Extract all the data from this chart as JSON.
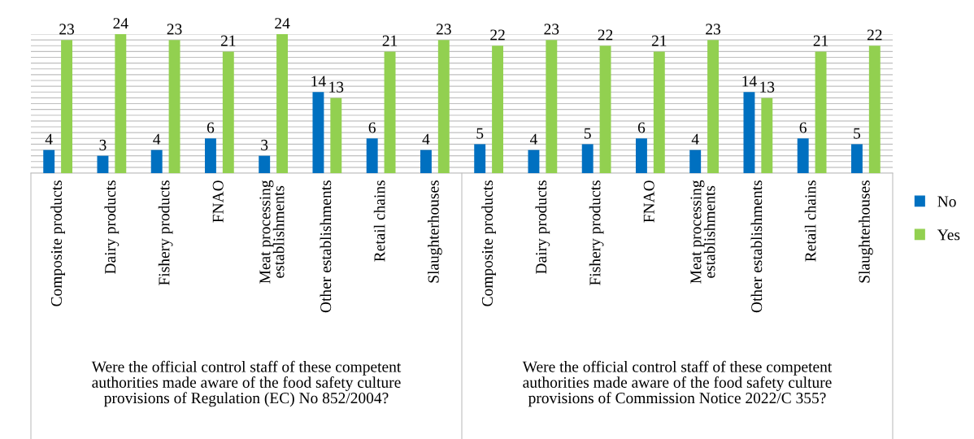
{
  "chart_data": {
    "type": "bar",
    "categories": [
      "Composite products",
      "Dairy products",
      "Fishery products",
      "FNAO",
      "Meat processing\nestablishments",
      "Other establishments",
      "Retail chains",
      "Slaughterhouses",
      "Composite products",
      "Dairy products",
      "Fishery products",
      "FNAO",
      "Meat processing\nestablishments",
      "Other establishments",
      "Retail chains",
      "Slaughterhouses"
    ],
    "series": [
      {
        "name": "No",
        "color": "#0070c0",
        "values": [
          4,
          3,
          4,
          6,
          3,
          14,
          6,
          4,
          5,
          4,
          5,
          6,
          4,
          14,
          6,
          5
        ]
      },
      {
        "name": "Yes",
        "color": "#92d050",
        "values": [
          23,
          24,
          23,
          21,
          24,
          13,
          21,
          23,
          22,
          23,
          22,
          21,
          23,
          13,
          21,
          22
        ]
      }
    ],
    "annotations": [
      "Were the official control staff of these competent\nauthorities made aware of the food safety culture\nprovisions of Regulation (EC) No 852/2004?",
      "Were the official control staff of these competent\nauthorities made aware of the food safety culture\nprovisions of Commission Notice 2022/C 355?"
    ],
    "ylim": [
      0,
      24
    ],
    "yticks": [
      {
        "value": 0,
        "label": null
      },
      {
        "value": 1,
        "label": null
      },
      {
        "value": 2,
        "label": null
      },
      {
        "value": 3,
        "label": null
      },
      {
        "value": 4,
        "label": null
      },
      {
        "value": 5,
        "label": null
      },
      {
        "value": 6,
        "label": null
      },
      {
        "value": 7,
        "label": null
      },
      {
        "value": 8,
        "label": null
      },
      {
        "value": 9,
        "label": null
      },
      {
        "value": 10,
        "label": null
      },
      {
        "value": 11,
        "label": null
      },
      {
        "value": 12,
        "label": null
      },
      {
        "value": 13,
        "label": null
      },
      {
        "value": 14,
        "label": null
      },
      {
        "value": 15,
        "label": null
      },
      {
        "value": 16,
        "label": null
      },
      {
        "value": 17,
        "label": null
      },
      {
        "value": 18,
        "label": null
      },
      {
        "value": 19,
        "label": null
      },
      {
        "value": 20,
        "label": null
      },
      {
        "value": 21,
        "label": null
      },
      {
        "value": 22,
        "label": null
      },
      {
        "value": 23,
        "label": null
      },
      {
        "value": 24,
        "label": null
      }
    ],
    "tick_labels": "x",
    "grid": "y",
    "legend": "right",
    "data_labels": true
  }
}
